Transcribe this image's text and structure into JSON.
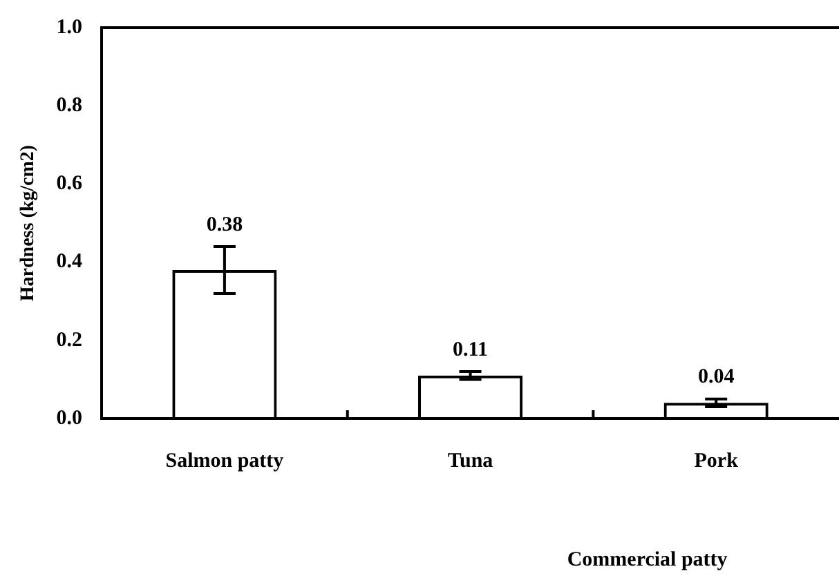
{
  "chart_data": {
    "type": "bar",
    "xlabel": "Commercial patty",
    "ylabel": "Hardness (kg/cm2)",
    "categories": [
      "Salmon patty",
      "Tuna",
      "Pork"
    ],
    "values": [
      0.38,
      0.11,
      0.04
    ],
    "errors": [
      0.06,
      0.01,
      0.01
    ],
    "color": "#000000",
    "ylim": [
      0,
      1
    ],
    "yticks": [
      {
        "value": 0,
        "label": "0.0"
      },
      {
        "value": 0.2,
        "label": "0.2"
      },
      {
        "value": 0.4,
        "label": "0.4"
      },
      {
        "value": 0.6,
        "label": "0.6"
      },
      {
        "value": 0.8,
        "label": "0.8"
      },
      {
        "value": 1,
        "label": "1.0"
      }
    ],
    "data_labels": true,
    "grid": false,
    "legend": false
  }
}
